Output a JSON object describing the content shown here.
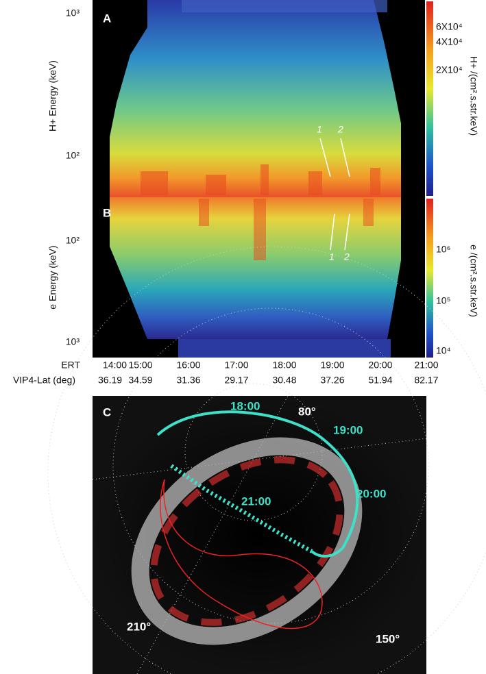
{
  "panel_a": {
    "label": "A",
    "y_axis_label": "H+ Energy (keV)",
    "y_ticks": [
      "10³",
      "10²"
    ],
    "colorbar_label": "H+ /(cm².s.str.keV)",
    "colorbar_ticks": [
      "6X10⁴",
      "4X10⁴",
      "2X10⁴"
    ],
    "annotations": [
      "1",
      "2"
    ]
  },
  "panel_b": {
    "label": "B",
    "y_axis_label": "e Energy (keV)",
    "y_ticks": [
      "10²",
      "10³"
    ],
    "colorbar_label": "e /(cm².s.str.keV)",
    "colorbar_ticks": [
      "10⁶",
      "10⁵",
      "10⁴"
    ],
    "annotations": [
      "1",
      "2"
    ]
  },
  "time_axis": {
    "ert_label": "ERT",
    "times": [
      "14:00",
      "15:00",
      "16:00",
      "17:00",
      "18:00",
      "19:00",
      "20:00",
      "21:00"
    ],
    "lat_label": "VIP4-Lat (deg)",
    "latitudes": [
      36.19,
      34.59,
      31.36,
      29.17,
      30.48,
      37.26,
      51.94,
      82.17
    ]
  },
  "panel_c": {
    "label": "C",
    "times": [
      "18:00",
      "19:00",
      "20:00",
      "21:00"
    ],
    "longitudes": [
      "80°",
      "210°",
      "150°"
    ]
  }
}
